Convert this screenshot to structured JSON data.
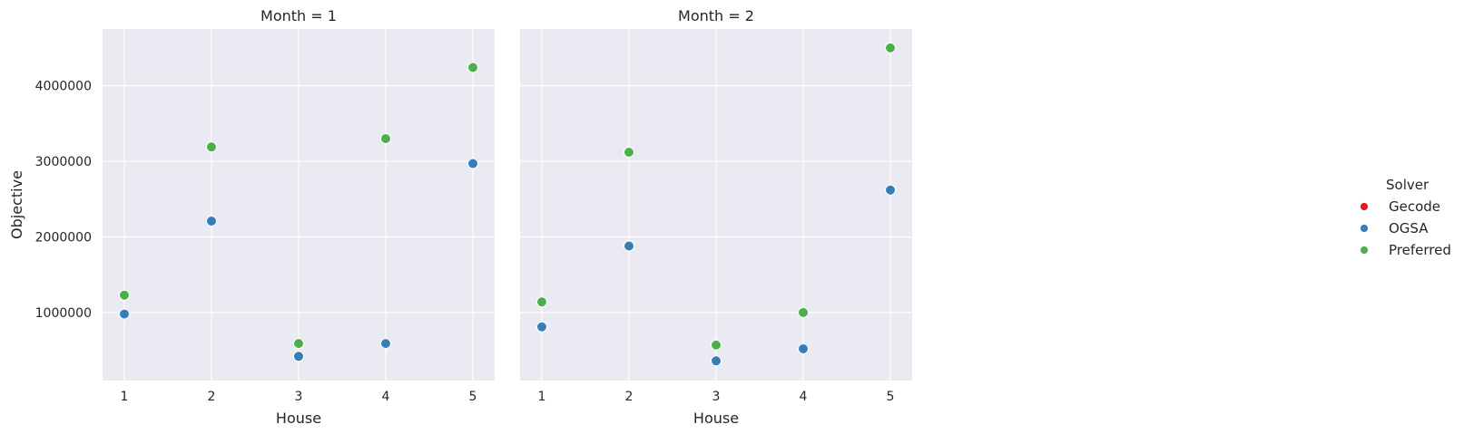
{
  "chart_data": [
    {
      "type": "scatter",
      "title": "Month = 1",
      "xlabel": "House",
      "ylabel": "Objective",
      "x_ticks": [
        1,
        2,
        3,
        4,
        5
      ],
      "y_ticks": [
        1000000,
        2000000,
        3000000,
        4000000
      ],
      "xlim": [
        0.75,
        5.25
      ],
      "ylim": [
        100000,
        4750000
      ],
      "grid": true,
      "series": [
        {
          "name": "Gecode",
          "color": "#e41a1c",
          "points": []
        },
        {
          "name": "OGSA",
          "color": "#377eb8",
          "points": [
            {
              "x": 1,
              "y": 980000
            },
            {
              "x": 2,
              "y": 2210000
            },
            {
              "x": 3,
              "y": 420000
            },
            {
              "x": 4,
              "y": 590000
            },
            {
              "x": 5,
              "y": 2970000
            }
          ]
        },
        {
          "name": "Preferred",
          "color": "#4daf4a",
          "points": [
            {
              "x": 1,
              "y": 1230000
            },
            {
              "x": 2,
              "y": 3190000
            },
            {
              "x": 3,
              "y": 590000
            },
            {
              "x": 4,
              "y": 3300000
            },
            {
              "x": 5,
              "y": 4240000
            }
          ]
        }
      ]
    },
    {
      "type": "scatter",
      "title": "Month = 2",
      "xlabel": "House",
      "ylabel": "",
      "x_ticks": [
        1,
        2,
        3,
        4,
        5
      ],
      "y_ticks": [
        1000000,
        2000000,
        3000000,
        4000000
      ],
      "xlim": [
        0.75,
        5.25
      ],
      "ylim": [
        100000,
        4750000
      ],
      "grid": true,
      "series": [
        {
          "name": "Gecode",
          "color": "#e41a1c",
          "points": []
        },
        {
          "name": "OGSA",
          "color": "#377eb8",
          "points": [
            {
              "x": 1,
              "y": 810000
            },
            {
              "x": 2,
              "y": 1880000
            },
            {
              "x": 3,
              "y": 360000
            },
            {
              "x": 4,
              "y": 520000
            },
            {
              "x": 5,
              "y": 2620000
            }
          ]
        },
        {
          "name": "Preferred",
          "color": "#4daf4a",
          "points": [
            {
              "x": 1,
              "y": 1140000
            },
            {
              "x": 2,
              "y": 3120000
            },
            {
              "x": 3,
              "y": 570000
            },
            {
              "x": 4,
              "y": 1000000
            },
            {
              "x": 5,
              "y": 4500000
            }
          ]
        }
      ]
    }
  ],
  "legend": {
    "title": "Solver",
    "placement": "center-right",
    "items": [
      {
        "label": "Gecode",
        "color": "#e41a1c"
      },
      {
        "label": "OGSA",
        "color": "#377eb8"
      },
      {
        "label": "Preferred",
        "color": "#4daf4a"
      }
    ]
  }
}
